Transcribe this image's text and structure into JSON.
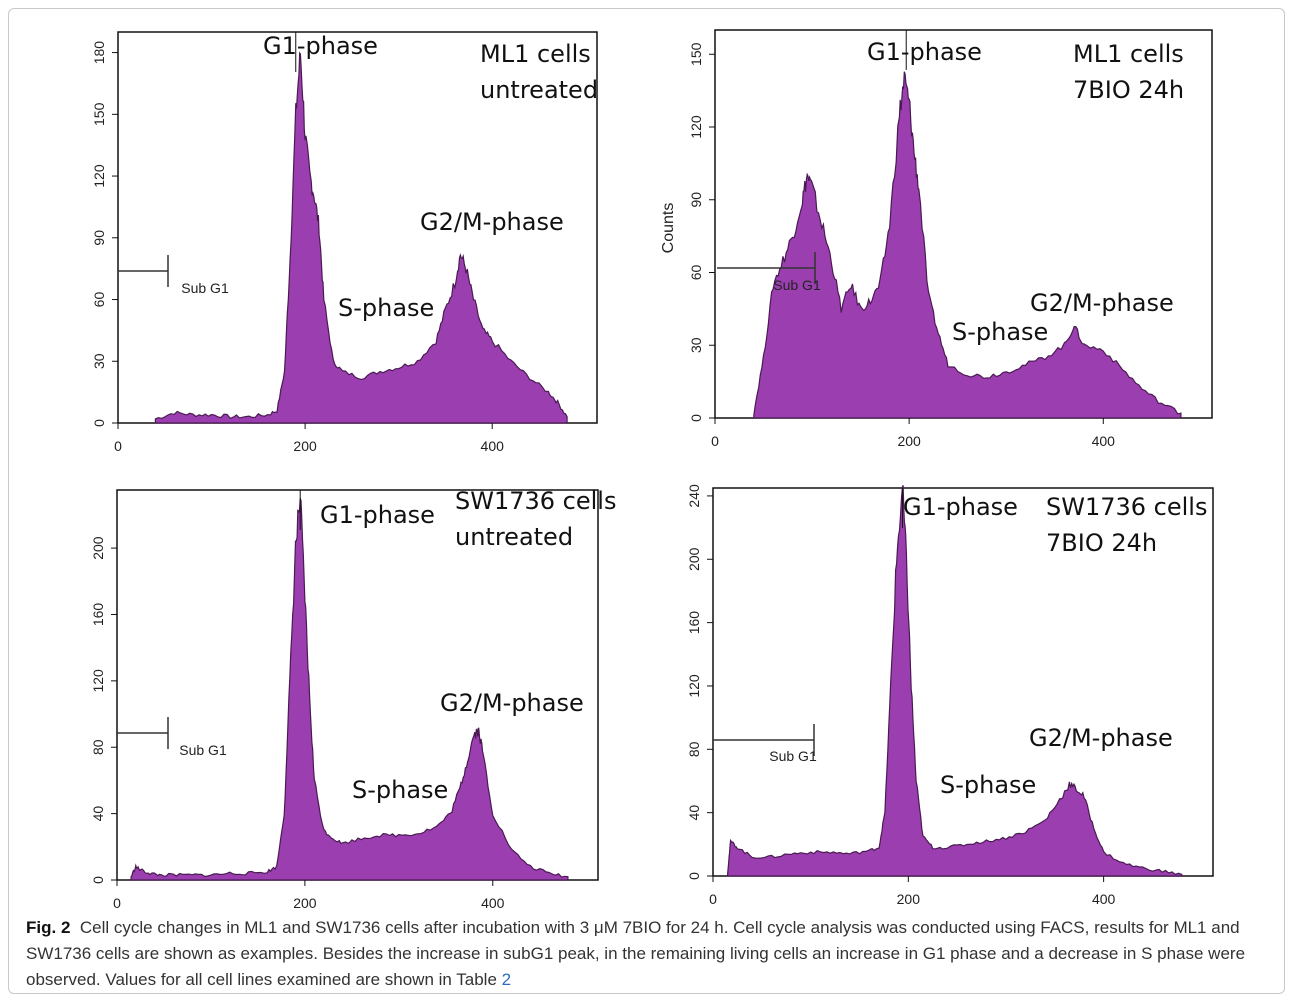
{
  "colors": {
    "fill": "#9b3fb0",
    "edge": "#4a1a52",
    "gate_line": "#333333"
  },
  "chart_data": [
    {
      "type": "area",
      "panel": "ML1 cells untreated",
      "xlim": [
        0,
        512
      ],
      "ylim": [
        0,
        190
      ],
      "xticks": [
        0,
        200,
        400
      ],
      "yticks": [
        0,
        30,
        60,
        90,
        120,
        150,
        180
      ],
      "ylabel": "",
      "labels": {
        "line1": "ML1 cells",
        "line2": "untreated",
        "g1": "G1-phase",
        "s": "S-phase",
        "g2m": "G2/M-phase",
        "subg1": "Sub G1"
      },
      "x": [
        40,
        60,
        80,
        100,
        120,
        140,
        160,
        170,
        178,
        184,
        190,
        195,
        200,
        205,
        210,
        215,
        220,
        230,
        240,
        260,
        280,
        300,
        320,
        340,
        350,
        360,
        366,
        372,
        380,
        390,
        400,
        420,
        440,
        460,
        470,
        480
      ],
      "series": [
        {
          "values": [
            2,
            5,
            4,
            4,
            3,
            3,
            4,
            6,
            25,
            80,
            150,
            180,
            140,
            120,
            110,
            95,
            60,
            30,
            25,
            22,
            25,
            27,
            30,
            40,
            55,
            68,
            82,
            75,
            60,
            45,
            40,
            30,
            22,
            15,
            10,
            3
          ]
        }
      ]
    },
    {
      "type": "area",
      "panel": "ML1 cells 7BIO 24h",
      "xlim": [
        0,
        512
      ],
      "ylim": [
        0,
        160
      ],
      "xticks": [
        0,
        200,
        400
      ],
      "yticks": [
        0,
        30,
        60,
        90,
        120,
        150
      ],
      "ylabel": "Counts",
      "labels": {
        "line1": "ML1 cells",
        "line2": "7BIO 24h",
        "g1": "G1-phase",
        "s": "S-phase",
        "g2m": "G2/M-phase",
        "subg1": "Sub G1"
      },
      "x": [
        40,
        50,
        60,
        70,
        80,
        90,
        95,
        100,
        110,
        120,
        130,
        140,
        150,
        160,
        170,
        180,
        190,
        195,
        200,
        205,
        210,
        220,
        230,
        240,
        260,
        280,
        300,
        320,
        340,
        360,
        370,
        380,
        400,
        420,
        440,
        460,
        480
      ],
      "series": [
        {
          "values": [
            2,
            25,
            55,
            65,
            75,
            90,
            100,
            95,
            80,
            65,
            45,
            55,
            45,
            48,
            55,
            80,
            125,
            140,
            130,
            110,
            95,
            50,
            35,
            22,
            18,
            17,
            19,
            22,
            25,
            30,
            38,
            30,
            28,
            20,
            12,
            6,
            2
          ]
        }
      ]
    },
    {
      "type": "area",
      "panel": "SW1736 cells untreated",
      "xlim": [
        0,
        512
      ],
      "ylim": [
        0,
        235
      ],
      "xticks": [
        0,
        200,
        400
      ],
      "yticks": [
        0,
        40,
        80,
        120,
        160,
        200
      ],
      "ylabel": "",
      "labels": {
        "line1": "SW1736 cells",
        "line2": "untreated",
        "g1": "G1-phase",
        "s": "S-phase",
        "g2m": "G2/M-phase",
        "subg1": "Sub G1"
      },
      "x": [
        15,
        20,
        25,
        35,
        45,
        60,
        80,
        100,
        120,
        140,
        160,
        170,
        178,
        184,
        190,
        195,
        200,
        205,
        210,
        220,
        230,
        240,
        260,
        280,
        300,
        320,
        340,
        355,
        365,
        372,
        380,
        385,
        390,
        400,
        420,
        440,
        460,
        480
      ],
      "series": [
        {
          "values": [
            2,
            8,
            6,
            4,
            3,
            3,
            3,
            3,
            4,
            4,
            5,
            8,
            40,
            120,
            200,
            230,
            170,
            110,
            60,
            30,
            25,
            22,
            25,
            27,
            27,
            28,
            32,
            40,
            55,
            70,
            88,
            90,
            75,
            40,
            18,
            8,
            4,
            2
          ]
        }
      ]
    },
    {
      "type": "area",
      "panel": "SW1736 cells 7BIO 24h",
      "xlim": [
        0,
        512
      ],
      "ylim": [
        0,
        245
      ],
      "xticks": [
        0,
        200,
        400
      ],
      "yticks": [
        0,
        40,
        80,
        120,
        160,
        200,
        240
      ],
      "ylabel": "",
      "labels": {
        "line1": "SW1736 cells",
        "line2": "7BIO 24h",
        "g1": "G1-phase",
        "s": "S-phase",
        "g2m": "G2/M-phase",
        "subg1": "Sub G1"
      },
      "x": [
        15,
        18,
        25,
        40,
        60,
        80,
        100,
        120,
        140,
        160,
        170,
        176,
        182,
        188,
        194,
        198,
        203,
        208,
        215,
        225,
        240,
        260,
        280,
        300,
        320,
        340,
        355,
        365,
        372,
        380,
        390,
        400,
        420,
        440,
        460,
        480
      ],
      "series": [
        {
          "values": [
            2,
            22,
            18,
            12,
            12,
            14,
            15,
            15,
            14,
            16,
            18,
            40,
            120,
            200,
            245,
            200,
            120,
            60,
            25,
            18,
            18,
            20,
            22,
            24,
            28,
            35,
            48,
            58,
            55,
            50,
            30,
            15,
            8,
            5,
            3,
            1
          ]
        }
      ]
    }
  ],
  "caption": {
    "fig": "Fig. 2",
    "text": "Cell cycle changes in ML1 and SW1736 cells after incubation with 3 μM 7BIO for 24 h. Cell cycle analysis was conducted using FACS, results for ML1 and SW1736 cells are shown as examples. Besides the increase in subG1 peak, in the remaining living cells an increase in G1 phase and a decrease in S phase were observed. Values for all cell lines examined are shown in Table",
    "table_ref": "2"
  }
}
